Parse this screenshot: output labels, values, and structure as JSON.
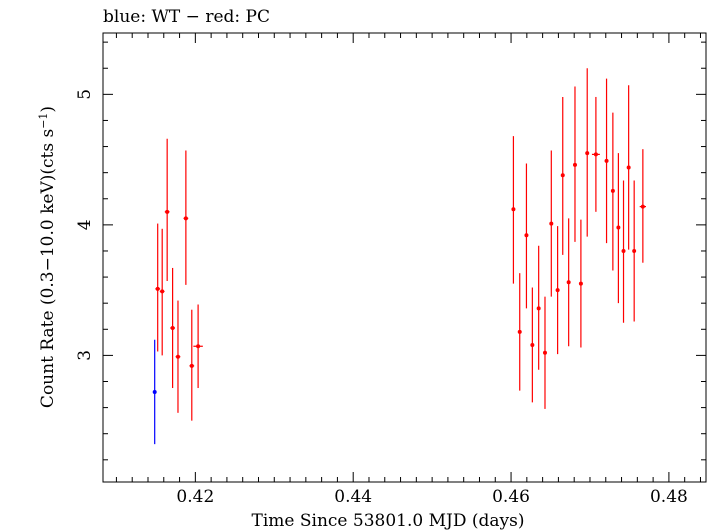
{
  "chart_data": {
    "type": "scatter",
    "title": "blue: WT − red: PC",
    "xlabel": "Time Since 53801.0 MJD (days)",
    "ylabel": "Count Rate (0.3−10.0 keV)(cts s",
    "ylabel_sup": "−1",
    "ylabel_end": ")",
    "xlim": [
      0.4083,
      0.4847
    ],
    "ylim": [
      2.03,
      5.47
    ],
    "xticks": [
      {
        "value": 0.42,
        "label": "0.42"
      },
      {
        "value": 0.44,
        "label": "0.44"
      },
      {
        "value": 0.46,
        "label": "0.46"
      },
      {
        "value": 0.48,
        "label": "0.48"
      }
    ],
    "yticks": [
      {
        "value": 3,
        "label": "3"
      },
      {
        "value": 4,
        "label": "4"
      },
      {
        "value": 5,
        "label": "5"
      }
    ],
    "grid": false,
    "series": [
      {
        "color": "#0000ff",
        "points": [
          {
            "x": 0.41485,
            "xerr": 0,
            "y": 2.72,
            "ylo": 2.32,
            "yhi": 3.12
          }
        ]
      },
      {
        "color": "#ff0000",
        "points": [
          {
            "x": 0.41523,
            "xerr": 0.0003,
            "y": 3.51,
            "ylo": 3.03,
            "yhi": 4.01
          },
          {
            "x": 0.4158,
            "xerr": 0.0003,
            "y": 3.49,
            "ylo": 3.0,
            "yhi": 3.97
          },
          {
            "x": 0.41643,
            "xerr": 0.0003,
            "y": 4.1,
            "ylo": 3.57,
            "yhi": 4.66
          },
          {
            "x": 0.41712,
            "xerr": 0.0003,
            "y": 3.21,
            "ylo": 2.75,
            "yhi": 3.67
          },
          {
            "x": 0.4178,
            "xerr": 0.0003,
            "y": 2.99,
            "ylo": 2.56,
            "yhi": 3.42
          },
          {
            "x": 0.4188,
            "xerr": 0.0003,
            "y": 4.05,
            "ylo": 3.54,
            "yhi": 4.57
          },
          {
            "x": 0.41955,
            "xerr": 0.0003,
            "y": 2.92,
            "ylo": 2.5,
            "yhi": 3.35
          },
          {
            "x": 0.42035,
            "xerr": 0.0006,
            "y": 3.07,
            "ylo": 2.75,
            "yhi": 3.39
          },
          {
            "x": 0.4603,
            "xerr": 0.0002,
            "y": 4.12,
            "ylo": 3.55,
            "yhi": 4.68
          },
          {
            "x": 0.4611,
            "xerr": 0.0002,
            "y": 3.18,
            "ylo": 2.73,
            "yhi": 3.63
          },
          {
            "x": 0.46195,
            "xerr": 0.0002,
            "y": 3.92,
            "ylo": 3.36,
            "yhi": 4.47
          },
          {
            "x": 0.4627,
            "xerr": 0.0002,
            "y": 3.08,
            "ylo": 2.64,
            "yhi": 3.52
          },
          {
            "x": 0.4635,
            "xerr": 0.0002,
            "y": 3.36,
            "ylo": 2.89,
            "yhi": 3.84
          },
          {
            "x": 0.4643,
            "xerr": 0.0002,
            "y": 3.02,
            "ylo": 2.59,
            "yhi": 3.45
          },
          {
            "x": 0.4651,
            "xerr": 0.0002,
            "y": 4.01,
            "ylo": 3.45,
            "yhi": 4.57
          },
          {
            "x": 0.4659,
            "xerr": 0.0002,
            "y": 3.5,
            "ylo": 3.01,
            "yhi": 3.99
          },
          {
            "x": 0.46655,
            "xerr": 0.0002,
            "y": 4.38,
            "ylo": 3.77,
            "yhi": 4.98
          },
          {
            "x": 0.4673,
            "xerr": 0.0002,
            "y": 3.56,
            "ylo": 3.07,
            "yhi": 4.05
          },
          {
            "x": 0.4681,
            "xerr": 0.0002,
            "y": 4.46,
            "ylo": 3.87,
            "yhi": 5.06
          },
          {
            "x": 0.46885,
            "xerr": 0.0002,
            "y": 3.55,
            "ylo": 3.06,
            "yhi": 4.04
          },
          {
            "x": 0.46965,
            "xerr": 0.0002,
            "y": 4.55,
            "ylo": 3.91,
            "yhi": 5.2
          },
          {
            "x": 0.47075,
            "xerr": 0.0005,
            "y": 4.54,
            "ylo": 4.1,
            "yhi": 4.98
          },
          {
            "x": 0.4721,
            "xerr": 0.0002,
            "y": 4.49,
            "ylo": 3.86,
            "yhi": 5.12
          },
          {
            "x": 0.4729,
            "xerr": 0.0002,
            "y": 4.26,
            "ylo": 3.65,
            "yhi": 4.86
          },
          {
            "x": 0.4736,
            "xerr": 0.0002,
            "y": 3.98,
            "ylo": 3.4,
            "yhi": 4.55
          },
          {
            "x": 0.47425,
            "xerr": 0.0002,
            "y": 3.8,
            "ylo": 3.25,
            "yhi": 4.34
          },
          {
            "x": 0.4749,
            "xerr": 0.0002,
            "y": 4.44,
            "ylo": 3.81,
            "yhi": 5.07
          },
          {
            "x": 0.4756,
            "xerr": 0.0002,
            "y": 3.8,
            "ylo": 3.26,
            "yhi": 4.34
          },
          {
            "x": 0.4767,
            "xerr": 0.0004,
            "y": 4.14,
            "ylo": 3.71,
            "yhi": 4.58
          }
        ]
      }
    ]
  }
}
